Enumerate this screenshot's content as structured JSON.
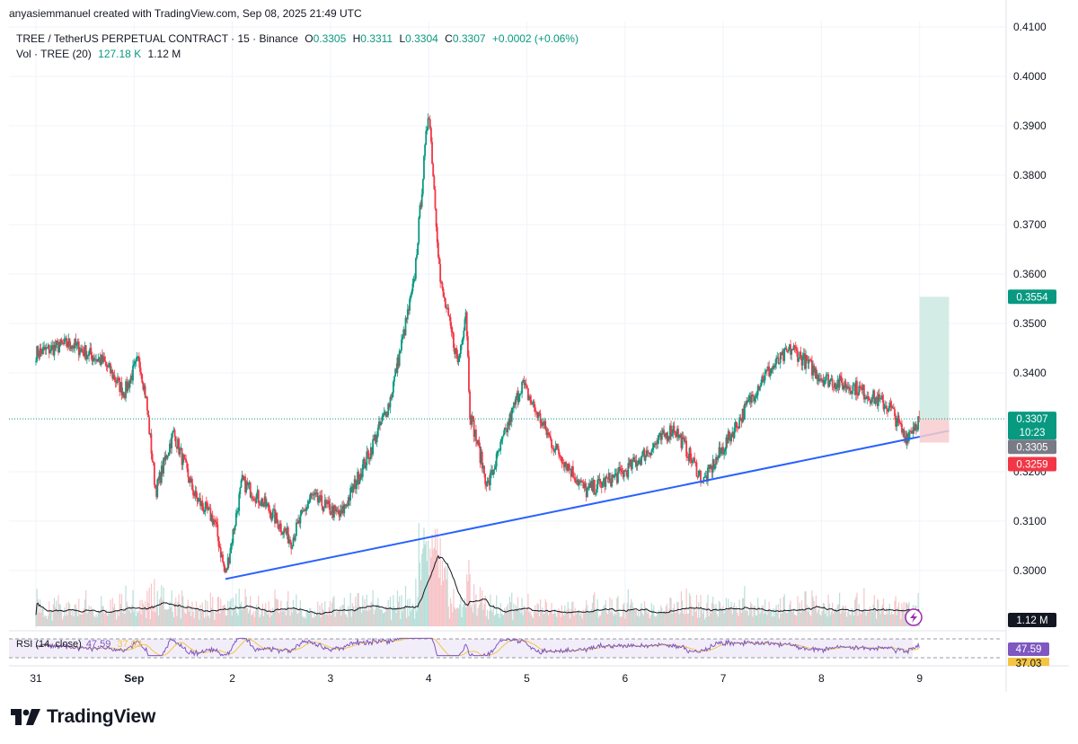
{
  "header": {
    "credit": "anyasiemmanuel created with TradingView.com, Sep 08, 2025 21:49 UTC",
    "symbol": "TREE / TetherUS PERPETUAL CONTRACT · 15 · Binance",
    "o_label": "O",
    "o_value": "0.3305",
    "h_label": "H",
    "h_value": "0.3311",
    "l_label": "L",
    "l_value": "0.3304",
    "c_label": "C",
    "c_value": "0.3307",
    "change": "+0.0002 (+0.06%)",
    "vol_label": "Vol · TREE (20)",
    "vol_value": "127.18 K",
    "vol_ma": "1.12 M"
  },
  "rsi": {
    "label": "RSI (14, close)",
    "value": "47.59",
    "ma": "37.03"
  },
  "price_tags": {
    "target": "0.3554",
    "last": "0.3307",
    "countdown": "10:23",
    "prev": "0.3305",
    "stop": "0.3259",
    "volume_ma": "1.12 M",
    "rsi_value": "47.59",
    "rsi_ma": "37.03"
  },
  "brand": {
    "name": "TradingView"
  },
  "colors": {
    "up": "#089981",
    "down": "#f23645",
    "trendline": "#2962ff",
    "target_zone": "#cde9e2",
    "stop_zone": "#f7cdd0",
    "rsi_line": "#7e57c2",
    "rsi_ma": "#f5c542"
  },
  "chart_data": {
    "type": "candlestick",
    "interval": "15",
    "y_ticks": [
      "0.4100",
      "0.4000",
      "0.3900",
      "0.3800",
      "0.3700",
      "0.3600",
      "0.3500",
      "0.3400",
      "0.3200",
      "0.3100",
      "0.3000"
    ],
    "ylim": [
      0.2883,
      0.411
    ],
    "x_ticks": [
      "31",
      "Sep",
      "2",
      "3",
      "4",
      "5",
      "6",
      "7",
      "8",
      "9"
    ],
    "price_path": [
      {
        "day": 0.0,
        "close": 0.344
      },
      {
        "day": 0.35,
        "close": 0.346
      },
      {
        "day": 0.7,
        "close": 0.342
      },
      {
        "day": 0.9,
        "close": 0.336
      },
      {
        "day": 1.05,
        "close": 0.343
      },
      {
        "day": 1.12,
        "close": 0.335
      },
      {
        "day": 1.22,
        "close": 0.316
      },
      {
        "day": 1.4,
        "close": 0.328
      },
      {
        "day": 1.62,
        "close": 0.315
      },
      {
        "day": 1.82,
        "close": 0.31
      },
      {
        "day": 1.93,
        "close": 0.299
      },
      {
        "day": 2.1,
        "close": 0.318
      },
      {
        "day": 2.35,
        "close": 0.313
      },
      {
        "day": 2.6,
        "close": 0.306
      },
      {
        "day": 2.8,
        "close": 0.315
      },
      {
        "day": 3.1,
        "close": 0.311
      },
      {
        "day": 3.4,
        "close": 0.324
      },
      {
        "day": 3.6,
        "close": 0.334
      },
      {
        "day": 3.85,
        "close": 0.358
      },
      {
        "day": 4.0,
        "close": 0.394
      },
      {
        "day": 4.12,
        "close": 0.358
      },
      {
        "day": 4.3,
        "close": 0.342
      },
      {
        "day": 4.38,
        "close": 0.353
      },
      {
        "day": 4.42,
        "close": 0.332
      },
      {
        "day": 4.6,
        "close": 0.317
      },
      {
        "day": 4.95,
        "close": 0.338
      },
      {
        "day": 5.25,
        "close": 0.326
      },
      {
        "day": 5.6,
        "close": 0.316
      },
      {
        "day": 6.0,
        "close": 0.32
      },
      {
        "day": 6.5,
        "close": 0.329
      },
      {
        "day": 6.8,
        "close": 0.318
      },
      {
        "day": 7.15,
        "close": 0.33
      },
      {
        "day": 7.4,
        "close": 0.339
      },
      {
        "day": 7.7,
        "close": 0.345
      },
      {
        "day": 8.0,
        "close": 0.339
      },
      {
        "day": 8.35,
        "close": 0.337
      },
      {
        "day": 8.7,
        "close": 0.333
      },
      {
        "day": 8.85,
        "close": 0.327
      },
      {
        "day": 9.0,
        "close": 0.3307
      }
    ],
    "last_close": 0.3307,
    "trendline": {
      "from": {
        "day": 1.93,
        "price": 0.2983
      },
      "to": {
        "day": 9.3,
        "price": 0.3283
      }
    },
    "position": {
      "entry": 0.3307,
      "target": 0.3554,
      "stop": 0.3259
    }
  }
}
